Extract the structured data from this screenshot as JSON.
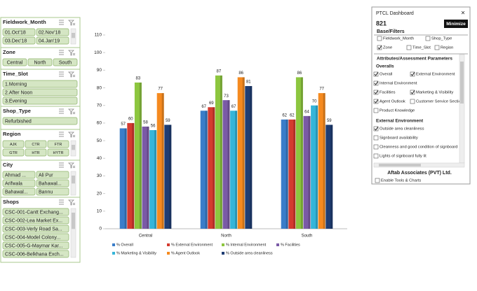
{
  "chart_data": {
    "type": "bar",
    "categories": [
      "Central",
      "North",
      "South"
    ],
    "series": [
      {
        "name": "% Overall",
        "color": "#3a7dc9",
        "values": [
          57,
          67,
          62
        ]
      },
      {
        "name": "% External Environment",
        "color": "#d43a2f",
        "values": [
          60,
          69,
          62
        ]
      },
      {
        "name": "% Internal Environment",
        "color": "#8dc63f",
        "values": [
          83,
          87,
          86
        ]
      },
      {
        "name": "% Facilities",
        "color": "#7a5aa6",
        "values": [
          58,
          73,
          64
        ]
      },
      {
        "name": "% Marketing & Visibility",
        "color": "#35b5d9",
        "values": [
          56,
          67,
          70
        ]
      },
      {
        "name": "% Agent Outlook",
        "color": "#f58a1f",
        "values": [
          77,
          86,
          77
        ]
      },
      {
        "name": "% Outside area cleanliness",
        "color": "#1f3d73",
        "values": [
          59,
          81,
          59
        ]
      }
    ],
    "ylim": [
      0,
      110
    ],
    "yticks": [
      0,
      10,
      20,
      30,
      40,
      50,
      60,
      70,
      80,
      90,
      100,
      110
    ],
    "legend": "bottom"
  },
  "slicers": [
    {
      "title": "Fieldwork_Month",
      "items": [
        "01.Oct'18",
        "02.Nov'18",
        "03.Dec'18",
        "04.Jan'19"
      ]
    },
    {
      "title": "Zone",
      "items": [
        "Central",
        "North",
        "South"
      ]
    },
    {
      "title": "Time_Slot",
      "items": [
        "1.Morning",
        "2.After Noon",
        "3.Evening"
      ]
    },
    {
      "title": "Shop_Type",
      "items": [
        "Refurbished"
      ]
    },
    {
      "title": "Region",
      "items": [
        "AJK",
        "CTR",
        "FTR",
        "GTR",
        "HTR",
        "HYTR"
      ]
    },
    {
      "title": "City",
      "items": [
        "Ahmad ...",
        "Ali Pur",
        "Arifwala",
        "Bahawal...",
        "Bahawal...",
        "Bannu"
      ]
    },
    {
      "title": "Shops",
      "items": [
        "CSC-001-Cantt Exchang...",
        "CSC-002-Lea Market Ex...",
        "CSC-003-Verly Road Sa...",
        "CSC-004-Model Colony...",
        "CSC-005-G-Maymar Kar...",
        "CSC-006-Belkhana Exch..."
      ]
    }
  ],
  "panel": {
    "title": "PTCL Dashboard",
    "close": "×",
    "count": 821,
    "button": "Minimize",
    "base_title": "Base/Filters",
    "base_filters": [
      {
        "label": "Fieldwork_Month",
        "checked": false
      },
      {
        "label": "Shop_Type",
        "checked": false
      },
      {
        "label": "Zone",
        "checked": true
      },
      {
        "label": "Time_Slot",
        "checked": false
      },
      {
        "label": "Region",
        "checked": false
      }
    ],
    "attr_title": "Attributes/Assessment Parameters",
    "groups": [
      {
        "title": "Overalls",
        "items": [
          {
            "label": "Overall",
            "checked": true
          },
          {
            "label": "External Environment",
            "checked": true
          },
          {
            "label": "Internal Environment",
            "checked": true
          },
          {
            "label": "Facilities",
            "checked": true
          },
          {
            "label": "Marketing & Visibility",
            "checked": true
          },
          {
            "label": "Agent Outlook",
            "checked": true
          },
          {
            "label": "Customer Service Section",
            "checked": false
          },
          {
            "label": "Product Knowledge",
            "checked": false
          }
        ]
      },
      {
        "title": "External Environment",
        "items": [
          {
            "label": "Outside area cleanliness",
            "checked": true
          },
          {
            "label": "Signboard availability",
            "checked": false
          },
          {
            "label": "Cleanness and good condition of signboard",
            "checked": false
          },
          {
            "label": "Lights of signboard fully lit",
            "checked": false
          }
        ]
      }
    ],
    "footer": "Aftab Associates (PVT) Ltd.",
    "enable": {
      "label": "Enable Tools & Charts",
      "checked": false
    }
  }
}
